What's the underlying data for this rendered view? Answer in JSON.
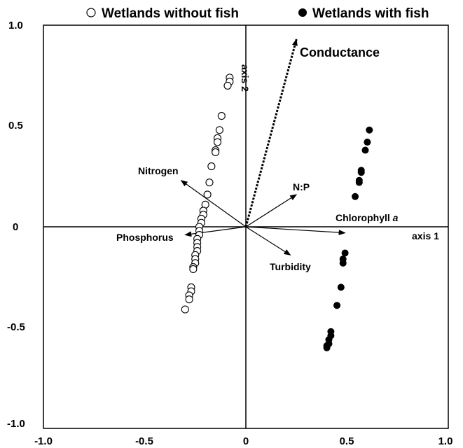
{
  "chart_data": {
    "type": "scatter",
    "title": "",
    "xlim": [
      -1.0,
      1.0
    ],
    "ylim": [
      -1.0,
      1.0
    ],
    "x_ticks": [
      "-1.0",
      "-0.5",
      "0",
      "0.5",
      "1.0"
    ],
    "y_ticks": [
      "1.0",
      "0.5",
      "0",
      "-0.5",
      "-1.0"
    ],
    "axis_labels": {
      "axis1": "axis 1",
      "axis2": "axis 2"
    },
    "legend_placement": "top",
    "series": [
      {
        "name": "Wetlands without fish",
        "marker": "open-circle",
        "color": "#000000",
        "points": [
          [
            -0.08,
            0.74
          ],
          [
            -0.08,
            0.72
          ],
          [
            -0.09,
            0.7
          ],
          [
            -0.12,
            0.55
          ],
          [
            -0.13,
            0.48
          ],
          [
            -0.14,
            0.44
          ],
          [
            -0.14,
            0.42
          ],
          [
            -0.15,
            0.38
          ],
          [
            -0.15,
            0.37
          ],
          [
            -0.17,
            0.3
          ],
          [
            -0.18,
            0.22
          ],
          [
            -0.19,
            0.16
          ],
          [
            -0.2,
            0.11
          ],
          [
            -0.21,
            0.08
          ],
          [
            -0.21,
            0.06
          ],
          [
            -0.22,
            0.04
          ],
          [
            -0.22,
            0.02
          ],
          [
            -0.23,
            0.0
          ],
          [
            -0.23,
            -0.02
          ],
          [
            -0.23,
            -0.04
          ],
          [
            -0.24,
            -0.06
          ],
          [
            -0.24,
            -0.08
          ],
          [
            -0.24,
            -0.1
          ],
          [
            -0.24,
            -0.12
          ],
          [
            -0.25,
            -0.14
          ],
          [
            -0.25,
            -0.16
          ],
          [
            -0.25,
            -0.18
          ],
          [
            -0.26,
            -0.2
          ],
          [
            -0.26,
            -0.21
          ],
          [
            -0.27,
            -0.3
          ],
          [
            -0.27,
            -0.32
          ],
          [
            -0.28,
            -0.34
          ],
          [
            -0.28,
            -0.36
          ],
          [
            -0.3,
            -0.41
          ]
        ]
      },
      {
        "name": "Wetlands with fish",
        "marker": "filled-circle",
        "color": "#000000",
        "points": [
          [
            0.61,
            0.48
          ],
          [
            0.6,
            0.42
          ],
          [
            0.59,
            0.38
          ],
          [
            0.57,
            0.28
          ],
          [
            0.57,
            0.27
          ],
          [
            0.56,
            0.23
          ],
          [
            0.56,
            0.22
          ],
          [
            0.54,
            0.15
          ],
          [
            0.49,
            -0.13
          ],
          [
            0.48,
            -0.16
          ],
          [
            0.48,
            -0.18
          ],
          [
            0.47,
            -0.3
          ],
          [
            0.45,
            -0.39
          ],
          [
            0.42,
            -0.52
          ],
          [
            0.42,
            -0.54
          ],
          [
            0.41,
            -0.56
          ],
          [
            0.41,
            -0.58
          ],
          [
            0.4,
            -0.59
          ],
          [
            0.4,
            -0.6
          ]
        ]
      }
    ],
    "vectors": [
      {
        "label": "Conductance",
        "x": 0.25,
        "y": 0.93,
        "style": "dotted"
      },
      {
        "label": "Nitrogen",
        "x": -0.32,
        "y": 0.23,
        "style": "solid"
      },
      {
        "label": "N:P",
        "x": 0.25,
        "y": 0.16,
        "style": "solid"
      },
      {
        "label": "Chlorophyll a",
        "x": 0.49,
        "y": -0.03,
        "style": "solid"
      },
      {
        "label": "Phosphorus",
        "x": -0.3,
        "y": -0.04,
        "style": "solid"
      },
      {
        "label": "Turbidity",
        "x": 0.22,
        "y": -0.14,
        "style": "solid"
      }
    ]
  }
}
